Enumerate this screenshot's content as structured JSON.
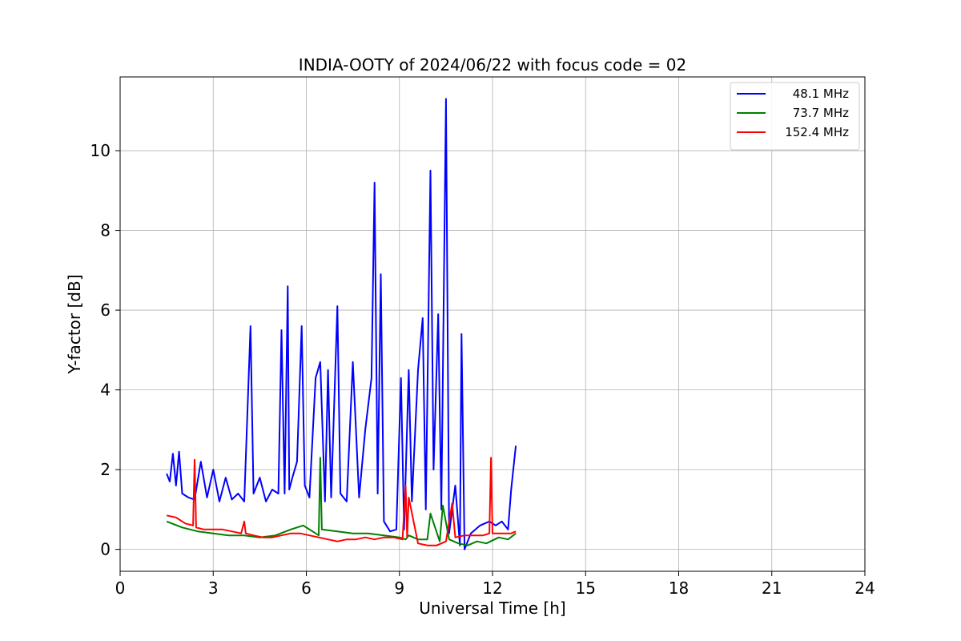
{
  "chart_data": {
    "type": "line",
    "title": "INDIA-OOTY of 2024/06/22 with focus code = 02",
    "xlabel": "Universal Time [h]",
    "ylabel": "Y-factor [dB]",
    "xlim": [
      0,
      24
    ],
    "ylim": [
      -0.55,
      11.85
    ],
    "xticks": [
      0,
      3,
      6,
      9,
      12,
      15,
      18,
      21,
      24
    ],
    "yticks": [
      0,
      2,
      4,
      6,
      8,
      10
    ],
    "grid": true,
    "legend_position": "top-right",
    "series": [
      {
        "name": "48.1 MHz",
        "color": "#0000ff",
        "x": [
          1.5,
          1.6,
          1.7,
          1.8,
          1.9,
          2.0,
          2.2,
          2.4,
          2.6,
          2.8,
          3.0,
          3.2,
          3.4,
          3.6,
          3.8,
          4.0,
          4.2,
          4.3,
          4.5,
          4.7,
          4.9,
          5.1,
          5.2,
          5.3,
          5.4,
          5.45,
          5.55,
          5.7,
          5.85,
          5.95,
          6.1,
          6.3,
          6.45,
          6.6,
          6.7,
          6.8,
          7.0,
          7.1,
          7.3,
          7.5,
          7.7,
          7.9,
          8.1,
          8.2,
          8.3,
          8.4,
          8.5,
          8.7,
          8.9,
          9.05,
          9.15,
          9.3,
          9.4,
          9.6,
          9.75,
          9.85,
          10.0,
          10.1,
          10.25,
          10.35,
          10.5,
          10.6,
          10.8,
          10.95,
          11.0,
          11.1,
          11.3,
          11.6,
          11.9,
          12.1,
          12.3,
          12.5,
          12.6,
          12.75
        ],
        "y": [
          1.9,
          1.7,
          2.4,
          1.6,
          2.45,
          1.4,
          1.3,
          1.25,
          2.2,
          1.3,
          2.0,
          1.2,
          1.8,
          1.25,
          1.4,
          1.2,
          5.6,
          1.4,
          1.8,
          1.2,
          1.5,
          1.4,
          5.5,
          1.4,
          6.6,
          1.5,
          1.8,
          2.2,
          5.6,
          1.6,
          1.3,
          4.3,
          4.7,
          1.2,
          4.5,
          1.3,
          6.1,
          1.4,
          1.2,
          4.7,
          1.3,
          3.0,
          4.3,
          9.2,
          1.4,
          6.9,
          0.7,
          0.45,
          0.5,
          4.3,
          0.5,
          4.5,
          1.2,
          4.5,
          5.8,
          1.0,
          9.5,
          2.0,
          5.9,
          1.0,
          11.3,
          0.4,
          1.6,
          0.1,
          5.4,
          0.0,
          0.4,
          0.6,
          0.7,
          0.6,
          0.7,
          0.5,
          1.5,
          2.6
        ]
      },
      {
        "name": "73.7 MHz",
        "color": "#008000",
        "x": [
          1.5,
          2.0,
          2.5,
          3.0,
          3.5,
          4.0,
          4.5,
          5.0,
          5.5,
          5.9,
          6.2,
          6.4,
          6.45,
          6.5,
          7.0,
          7.5,
          8.0,
          8.5,
          9.0,
          9.2,
          9.3,
          9.6,
          9.9,
          10.0,
          10.3,
          10.4,
          10.6,
          10.9,
          11.2,
          11.5,
          11.8,
          12.2,
          12.5,
          12.75
        ],
        "y": [
          0.7,
          0.55,
          0.45,
          0.4,
          0.35,
          0.35,
          0.3,
          0.35,
          0.5,
          0.6,
          0.45,
          0.35,
          2.3,
          0.5,
          0.45,
          0.4,
          0.4,
          0.35,
          0.3,
          0.25,
          0.35,
          0.25,
          0.25,
          0.9,
          0.2,
          1.1,
          0.25,
          0.15,
          0.1,
          0.2,
          0.15,
          0.3,
          0.25,
          0.4
        ]
      },
      {
        "name": "152.4 MHz",
        "color": "#ff0000",
        "x": [
          1.5,
          1.8,
          2.1,
          2.35,
          2.4,
          2.45,
          2.7,
          3.0,
          3.3,
          3.6,
          3.9,
          4.0,
          4.05,
          4.3,
          4.6,
          4.9,
          5.2,
          5.5,
          5.8,
          6.1,
          6.4,
          6.7,
          7.0,
          7.3,
          7.6,
          7.9,
          8.2,
          8.5,
          8.8,
          9.1,
          9.2,
          9.25,
          9.3,
          9.6,
          9.9,
          10.2,
          10.5,
          10.7,
          10.8,
          11.1,
          11.4,
          11.7,
          11.9,
          11.95,
          12.0,
          12.3,
          12.6,
          12.75
        ],
        "y": [
          0.85,
          0.8,
          0.65,
          0.6,
          2.25,
          0.55,
          0.5,
          0.5,
          0.5,
          0.45,
          0.4,
          0.7,
          0.4,
          0.35,
          0.3,
          0.3,
          0.35,
          0.4,
          0.4,
          0.35,
          0.3,
          0.25,
          0.2,
          0.25,
          0.25,
          0.3,
          0.25,
          0.3,
          0.3,
          0.25,
          1.6,
          0.3,
          1.3,
          0.15,
          0.1,
          0.1,
          0.2,
          1.15,
          0.3,
          0.35,
          0.35,
          0.35,
          0.4,
          2.3,
          0.4,
          0.4,
          0.4,
          0.45
        ]
      }
    ]
  }
}
